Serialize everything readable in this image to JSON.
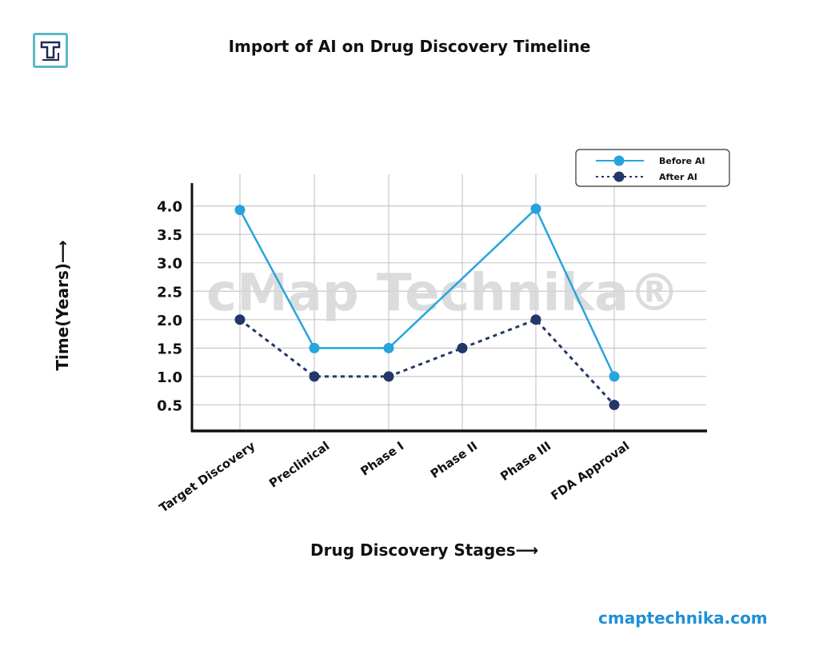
{
  "header": {
    "title": "Import of AI on Drug Discovery Timeline",
    "logo_text": "T"
  },
  "footer": {
    "site": "cmaptechnika.com"
  },
  "watermark": "cMap Technika®",
  "chart_data": {
    "type": "line",
    "title": "Import of AI on Drug Discovery Timeline",
    "xlabel": "Drug Discovery Stages⟶",
    "ylabel": "Time(Years)⟶",
    "categories": [
      "Target Discovery",
      "Preclinical",
      "Phase I",
      "Phase II",
      "Phase III",
      "FDA Approval"
    ],
    "yticks": [
      "0.5",
      "1.0",
      "1.5",
      "2.0",
      "2.5",
      "3.0",
      "3.5",
      "4.0"
    ],
    "ylim": [
      0,
      4.0
    ],
    "grid": true,
    "legend_position": "top-right",
    "series": [
      {
        "name": "Before AI",
        "color": "#27a4dc",
        "style": "solid",
        "values": [
          3.93,
          1.5,
          1.5,
          null,
          3.95,
          1.0
        ]
      },
      {
        "name": "After AI",
        "color": "#243769",
        "style": "dotted",
        "values": [
          2.0,
          1.0,
          1.0,
          1.5,
          2.0,
          0.5
        ]
      }
    ]
  }
}
